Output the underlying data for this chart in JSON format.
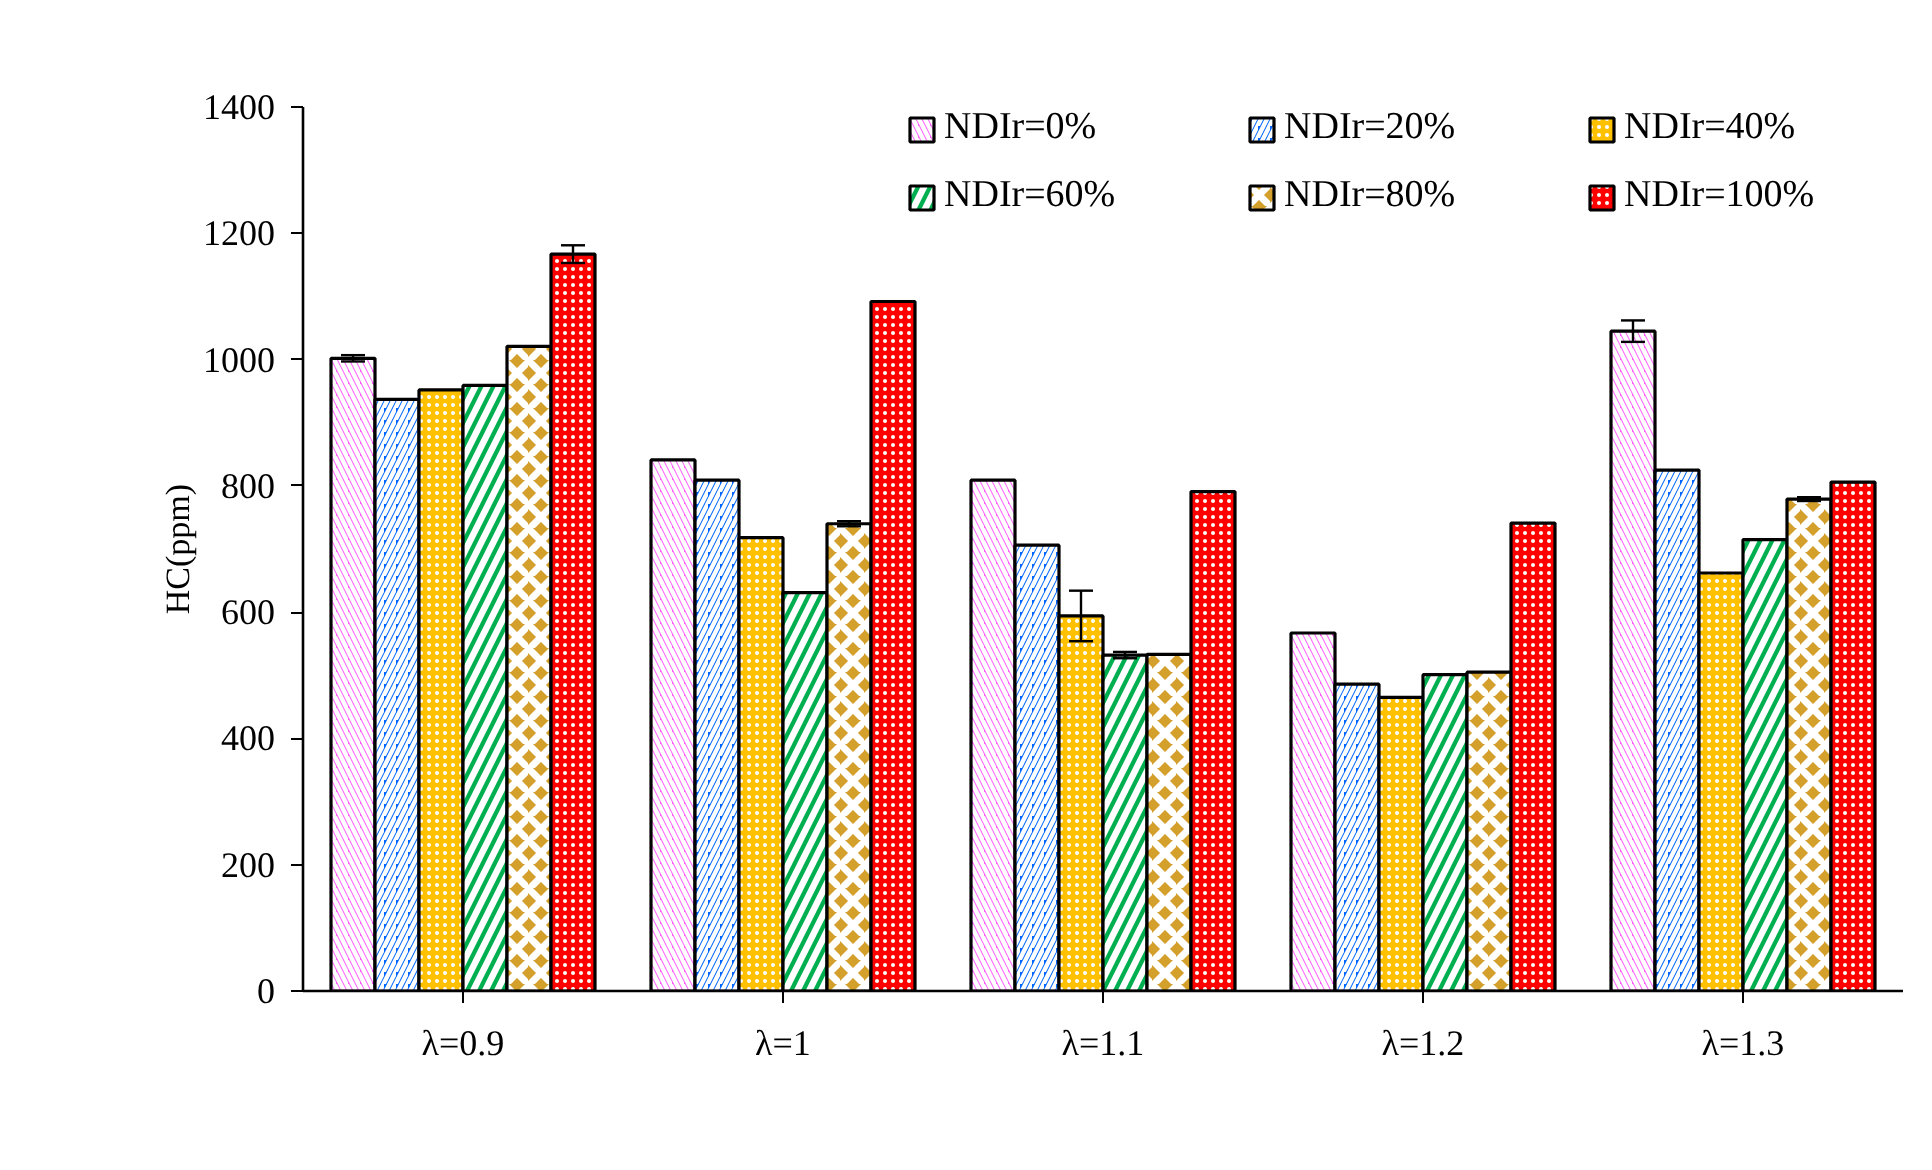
{
  "chart_data": {
    "type": "bar",
    "ylabel": "HC(ppm)",
    "categories": [
      "λ=0.9",
      "λ=1",
      "λ=1.1",
      "λ=1.2",
      "λ=1.3"
    ],
    "series": [
      {
        "name": "NDIr=0%",
        "color": "#ff5cff",
        "values": [
          1002,
          841,
          809,
          567,
          1045
        ],
        "errors": [
          5,
          null,
          null,
          null,
          17
        ]
      },
      {
        "name": "NDIr=20%",
        "color": "#0066ff",
        "values": [
          937,
          809,
          706,
          486,
          825
        ]
      },
      {
        "name": "NDIr=40%",
        "color": "#ffc000",
        "values": [
          952,
          718,
          594,
          465,
          662
        ],
        "errors": [
          null,
          null,
          40,
          null,
          null
        ]
      },
      {
        "name": "NDIr=60%",
        "color": "#00b050",
        "values": [
          959,
          631,
          532,
          501,
          715
        ],
        "errors": [
          null,
          null,
          5,
          null,
          null
        ]
      },
      {
        "name": "NDIr=80%",
        "color": "#d4a02c",
        "values": [
          1021,
          740,
          533,
          505,
          779
        ],
        "errors": [
          null,
          4,
          null,
          null,
          3
        ]
      },
      {
        "name": "NDIr=100%",
        "color": "#ff0000",
        "values": [
          1167,
          1092,
          791,
          741,
          806
        ],
        "errors": [
          14,
          null,
          null,
          null,
          null
        ]
      }
    ],
    "ylim": [
      0,
      1400
    ],
    "yticks": [
      0,
      200,
      400,
      600,
      800,
      1000,
      1200,
      1400
    ],
    "grid": false,
    "legend": "top right"
  }
}
